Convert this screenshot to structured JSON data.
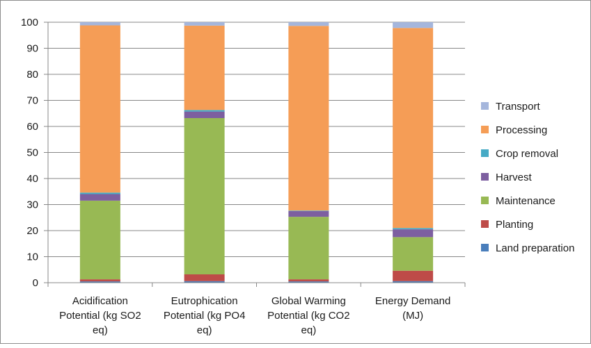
{
  "chart_data": {
    "type": "stacked_bar",
    "categories": [
      [
        "Acidification",
        "Potential (kg SO2",
        "eq)"
      ],
      [
        "Eutrophication",
        "Potential (kg PO4",
        "eq)"
      ],
      [
        "Global Warming",
        "Potential (kg CO2",
        "eq)"
      ],
      [
        "Energy Demand",
        "(MJ)"
      ]
    ],
    "ylim": [
      0,
      100
    ],
    "yticks": [
      0,
      10,
      20,
      30,
      40,
      50,
      60,
      70,
      80,
      90,
      100
    ],
    "grid": "horizontal",
    "legend_position": "right",
    "series": [
      {
        "name": "Land preparation",
        "color": "#4a7ebb",
        "values": [
          0.5,
          0.6,
          0.5,
          0.6
        ]
      },
      {
        "name": "Planting",
        "color": "#be4b48",
        "values": [
          0.8,
          2.6,
          0.8,
          4.0
        ]
      },
      {
        "name": "Maintenance",
        "color": "#98b954",
        "values": [
          30.2,
          60.0,
          24.0,
          12.9
        ]
      },
      {
        "name": "Harvest",
        "color": "#7d5fa0",
        "values": [
          2.5,
          2.5,
          2.2,
          3.0
        ]
      },
      {
        "name": "Crop removal",
        "color": "#46aac5",
        "values": [
          0.6,
          0.6,
          0.2,
          0.5
        ]
      },
      {
        "name": "Processing",
        "color": "#f59d56",
        "values": [
          64.2,
          32.4,
          70.9,
          76.8
        ]
      },
      {
        "name": "Transport",
        "color": "#a5b6dc",
        "values": [
          1.2,
          1.3,
          1.4,
          2.2
        ]
      }
    ]
  }
}
